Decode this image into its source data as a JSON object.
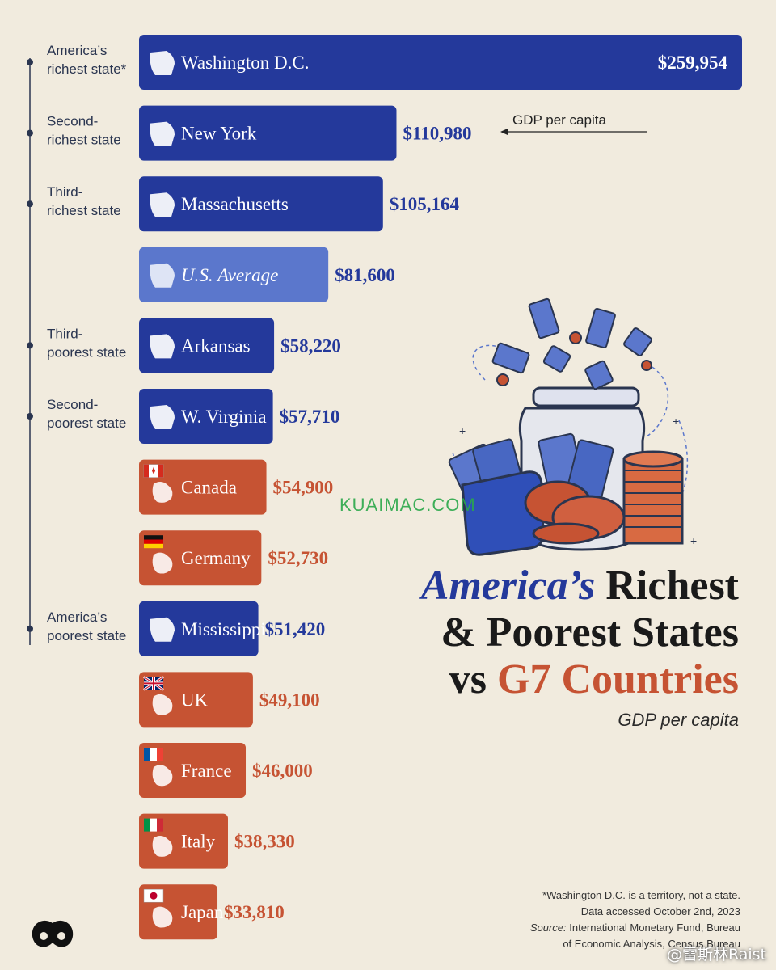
{
  "chart_data": {
    "type": "bar",
    "orientation": "horizontal",
    "title": [
      "America’s",
      "Richest",
      "& Poorest States",
      "vs",
      "G7 Countries"
    ],
    "subtitle": "GDP per capita",
    "value_note": "GDP per capita",
    "categories": [
      "Washington D.C.",
      "New York",
      "Massachusetts",
      "U.S. Average",
      "Arkansas",
      "W. Virginia",
      "Canada",
      "Germany",
      "Mississippi",
      "UK",
      "France",
      "Italy",
      "Japan"
    ],
    "values": [
      259954,
      110980,
      105164,
      81600,
      58220,
      57710,
      54900,
      52730,
      51420,
      49100,
      46000,
      38330,
      33810
    ],
    "value_labels": [
      "$259,954",
      "$110,980",
      "$105,164",
      "$81,600",
      "$58,220",
      "$57,710",
      "$54,900",
      "$52,730",
      "$51,420",
      "$49,100",
      "$46,000",
      "$38,330",
      "$33,810"
    ],
    "groups": [
      "state",
      "state",
      "state",
      "average",
      "state",
      "state",
      "country",
      "country",
      "state",
      "country",
      "country",
      "country",
      "country"
    ],
    "annotations": [
      {
        "category": "Washington D.C.",
        "text": [
          "America’s",
          "richest state*"
        ]
      },
      {
        "category": "New York",
        "text": [
          "Second-",
          "richest state"
        ]
      },
      {
        "category": "Massachusetts",
        "text": [
          "Third-",
          "richest state"
        ]
      },
      {
        "category": "Arkansas",
        "text": [
          "Third-",
          "poorest state"
        ]
      },
      {
        "category": "W. Virginia",
        "text": [
          "Second-",
          "poorest state"
        ]
      },
      {
        "category": "Mississippi",
        "text": [
          "America’s",
          "poorest state"
        ]
      }
    ],
    "colors": {
      "state": "#24399b",
      "average": "#5b77cc",
      "country": "#c65333",
      "state_text": "#24399b",
      "country_text": "#c65333"
    }
  },
  "footnote": {
    "line1": "*Washington D.C. is a territory, not a state.",
    "line2": "Data accessed October 2nd, 2023",
    "source_label": "Source:",
    "source_text": "International Monetary Fund, Bureau",
    "line4": "of Economic Analysis, Census Bureau"
  },
  "watermark": "KUAIMAC.COM",
  "weibo_handle": "@雷斯林Raist",
  "icons": [
    "dc-shape-icon",
    "new-york-shape-icon",
    "massachusetts-shape-icon",
    "usa-shape-icon",
    "arkansas-shape-icon",
    "west-virginia-shape-icon",
    "canada-flag-icon",
    "germany-flag-icon",
    "mississippi-shape-icon",
    "uk-flag-icon",
    "france-flag-icon",
    "italy-flag-icon",
    "japan-flag-icon",
    "money-jar-illustration",
    "brand-logo"
  ]
}
